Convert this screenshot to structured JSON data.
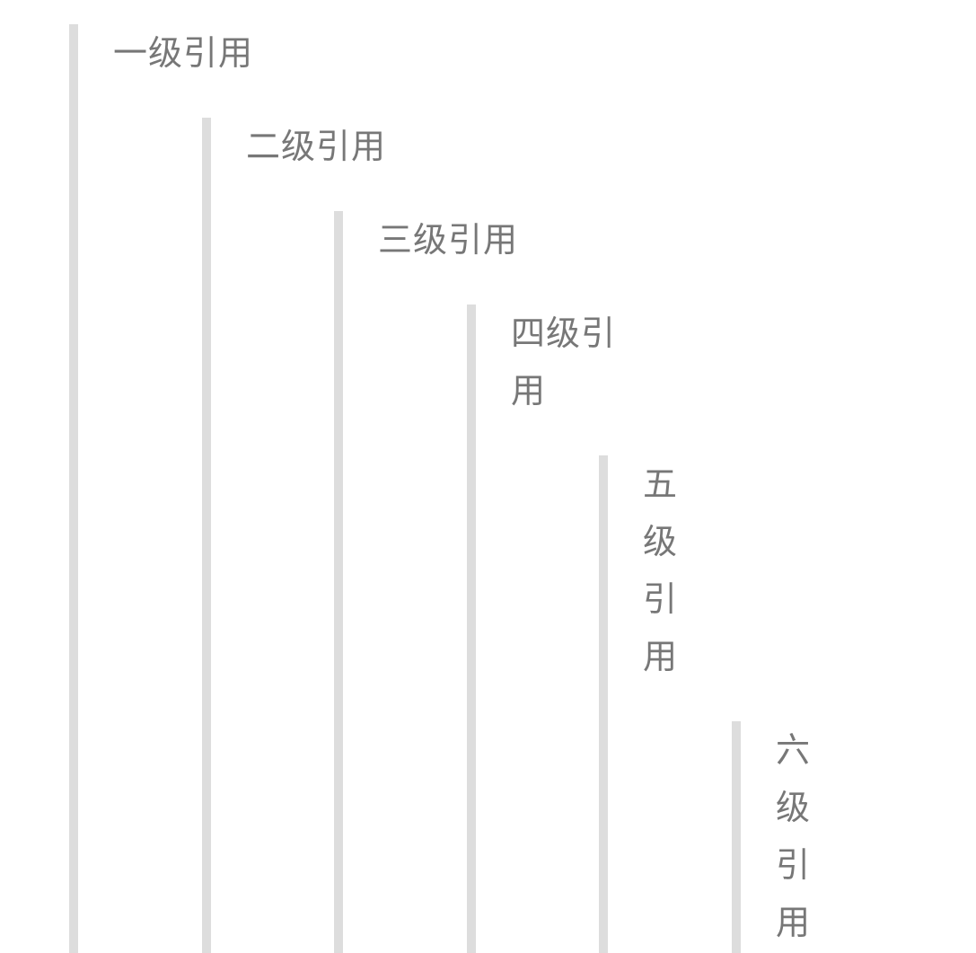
{
  "quotes": [
    {
      "level": 1,
      "text": "一级引用"
    },
    {
      "level": 2,
      "text": "二级引用"
    },
    {
      "level": 3,
      "text": "三级引用"
    },
    {
      "level": 4,
      "text": "四级引用"
    },
    {
      "level": 5,
      "text": "五级引用"
    },
    {
      "level": 6,
      "text": "六级引用"
    }
  ],
  "colors": {
    "bar": "#dddddd",
    "text": "#777777",
    "background": "#ffffff"
  }
}
